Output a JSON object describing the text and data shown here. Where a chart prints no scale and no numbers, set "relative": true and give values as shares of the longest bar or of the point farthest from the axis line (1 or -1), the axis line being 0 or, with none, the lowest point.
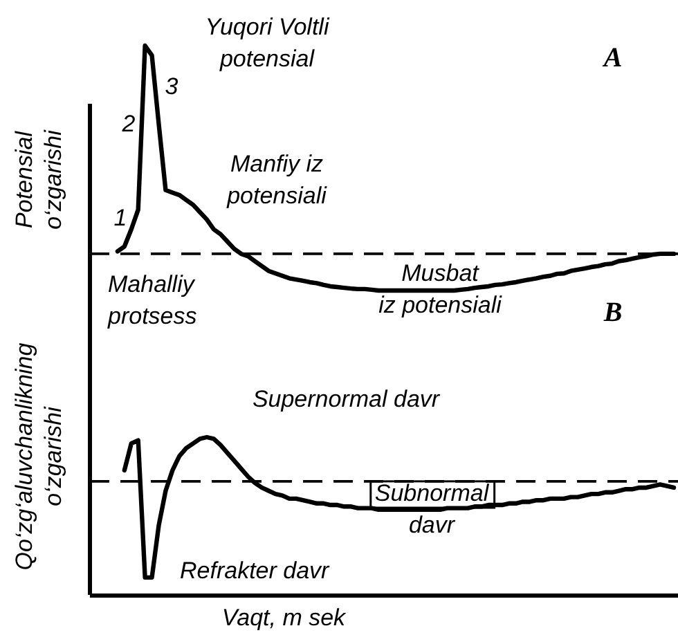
{
  "chart_data": [
    {
      "type": "line",
      "relative": true,
      "ylabel": "Potensial\no‘zgarishi",
      "color": "#000000",
      "categories": [
        null,
        null,
        null,
        null,
        null,
        null,
        null,
        null,
        null,
        null,
        null,
        null,
        null,
        null,
        null,
        null,
        null,
        null,
        null,
        null,
        null,
        null,
        null,
        null,
        null,
        null,
        null,
        null,
        null,
        null,
        null,
        null,
        null,
        null,
        null,
        null,
        null,
        null,
        null,
        null,
        null,
        null,
        null,
        null,
        null,
        null,
        null,
        null,
        null,
        null,
        null,
        null,
        null,
        null,
        null,
        null,
        null,
        null,
        null,
        null,
        null,
        null,
        null,
        null,
        null,
        null,
        null,
        null,
        null,
        null,
        null,
        null,
        null,
        null,
        null,
        null,
        null,
        null,
        null,
        null,
        null,
        null,
        null
      ],
      "values": [
        null,
        0.16,
        0.18,
        0.25,
        0.33,
        1,
        0.96,
        0.68,
        0.41,
        0.4,
        0.39,
        0.37,
        0.35,
        0.32,
        0.29,
        0.25,
        0.23,
        0.2,
        0.17,
        0.15,
        0.14,
        0.12,
        0.1,
        0.08,
        0.07,
        0.06,
        0.05,
        0.045,
        0.04,
        0.034,
        0.03,
        0.023,
        0.017,
        0.014,
        0.011,
        0.008,
        0.006,
        0.006,
        0.003,
        0,
        0,
        0,
        0,
        0,
        0,
        0,
        0,
        0,
        0,
        0,
        0,
        0.003,
        0.006,
        0.011,
        0.014,
        0.017,
        0.023,
        0.025,
        0.03,
        0.034,
        0.04,
        0.045,
        0.05,
        0.056,
        0.06,
        0.068,
        0.07,
        0.08,
        0.085,
        0.09,
        0.096,
        0.1,
        0.107,
        0.11,
        0.12,
        0.124,
        0.13,
        0.136,
        0.14,
        0.147,
        0.15,
        0.15,
        0.15
      ],
      "ref_lines": [
        {
          "axis": "y",
          "value": 0.15,
          "line_style": "dashed"
        }
      ],
      "annotations": [
        "Yuqori Voltli\npotensial",
        "A",
        "1",
        "2",
        "3",
        "Manfiy iz\npotensiali",
        "Mahalliy\nprotsess",
        "Musbat\niz potensiali"
      ]
    },
    {
      "type": "line",
      "relative": true,
      "ylabel": "Qo‘zg‘aluvchanlikning\no‘zgarishi",
      "xlabel": "Vaqt, m sek",
      "color": "#000000",
      "categories": [
        null,
        null,
        null,
        null,
        null,
        null,
        null,
        null,
        null,
        null,
        null,
        null,
        null,
        null,
        null,
        null,
        null,
        null,
        null,
        null,
        null,
        null,
        null,
        null,
        null,
        null,
        null,
        null,
        null,
        null,
        null,
        null,
        null,
        null,
        null,
        null,
        null,
        null,
        null,
        null,
        null,
        null,
        null,
        null,
        null,
        null,
        null,
        null,
        null,
        null,
        null,
        null,
        null,
        null,
        null,
        null,
        null,
        null,
        null,
        null,
        null,
        null,
        null,
        null,
        null,
        null,
        null,
        null,
        null,
        null,
        null,
        null,
        null,
        null,
        null,
        null,
        null,
        null,
        null,
        null,
        null,
        null,
        null
      ],
      "values": [
        null,
        null,
        0.79,
        0.96,
        0.98,
        0.11,
        0.11,
        0.44,
        0.66,
        0.79,
        0.88,
        0.93,
        0.96,
        0.99,
        1,
        0.99,
        0.95,
        0.9,
        0.85,
        0.8,
        0.75,
        0.71,
        0.68,
        0.66,
        0.64,
        0.63,
        0.61,
        0.61,
        0.6,
        0.59,
        0.58,
        0.58,
        0.57,
        0.57,
        0.56,
        0.56,
        0.55,
        0.55,
        0.55,
        0.54,
        0.54,
        0.54,
        0.54,
        0.54,
        0.54,
        0.54,
        0.54,
        0.54,
        0.54,
        0.55,
        0.55,
        0.55,
        0.55,
        0.56,
        0.56,
        0.57,
        0.57,
        0.57,
        0.58,
        0.58,
        0.59,
        0.59,
        0.6,
        0.6,
        0.61,
        0.61,
        0.61,
        0.62,
        0.62,
        0.63,
        0.64,
        0.64,
        0.65,
        0.65,
        0.66,
        0.67,
        0.67,
        0.68,
        0.68,
        0.69,
        0.7,
        0.69,
        0.68
      ],
      "ref_lines": [
        {
          "axis": "y",
          "value": 0.72,
          "line_style": "dashed"
        }
      ],
      "annotations": [
        "B",
        "Supernormal davr",
        "Subnormal\ndavr",
        "Refrakter davr"
      ]
    }
  ]
}
